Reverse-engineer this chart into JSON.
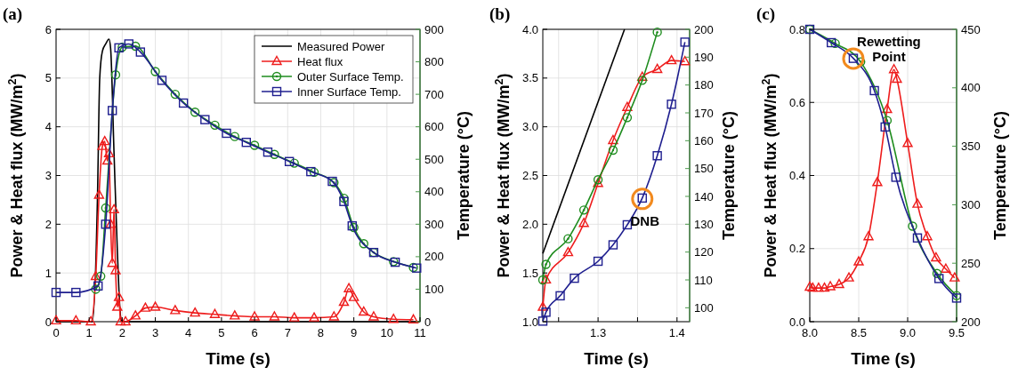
{
  "chart_data": [
    {
      "type": "line",
      "title": "(a)",
      "xlabel": "Time (s)",
      "ylabel": "Power & Heat flux (MW/m$^{2}$)",
      "y2label": "Temperature (°C)",
      "xlim": [
        0,
        11
      ],
      "xticks": [
        0,
        1,
        2,
        3,
        4,
        5,
        6,
        7,
        8,
        9,
        10,
        11
      ],
      "ylim": [
        0,
        6
      ],
      "yticks": [
        0,
        1,
        2,
        3,
        4,
        5,
        6
      ],
      "y2lim": [
        0,
        900
      ],
      "y2ticks": [
        0,
        100,
        200,
        300,
        400,
        500,
        600,
        700,
        800,
        900
      ],
      "grid": true,
      "legend": "top right",
      "series": [
        {
          "name": "Measured Power",
          "color": "#000000",
          "marker": "none",
          "x": [
            0,
            1.1,
            1.25,
            1.32,
            1.4,
            1.5,
            1.6,
            1.65,
            1.75,
            1.85,
            1.95,
            2.0,
            11
          ],
          "values": [
            0,
            0,
            2.5,
            5.0,
            5.55,
            5.7,
            5.8,
            5.6,
            3.5,
            1.5,
            0.1,
            0,
            0
          ]
        },
        {
          "name": "Heat flux",
          "color": "#ee1c1c",
          "marker": "triangle",
          "x": [
            0,
            0.6,
            1.05,
            1.2,
            1.3,
            1.4,
            1.47,
            1.55,
            1.6,
            1.65,
            1.7,
            1.75,
            1.8,
            1.85,
            1.9,
            1.95,
            2.1,
            2.4,
            2.7,
            3.0,
            3.6,
            4.2,
            4.8,
            5.4,
            6.0,
            6.6,
            7.2,
            7.8,
            8.4,
            8.7,
            8.85,
            9.0,
            9.3,
            9.6,
            10.2,
            10.8
          ],
          "values": [
            0.02,
            0.02,
            0,
            0.93,
            2.6,
            3.6,
            3.7,
            3.3,
            3.45,
            2.0,
            1.2,
            2.3,
            1.05,
            0.3,
            0.5,
            0,
            0,
            0.12,
            0.28,
            0.3,
            0.23,
            0.18,
            0.15,
            0.12,
            0.1,
            0.1,
            0.08,
            0.08,
            0.1,
            0.4,
            0.68,
            0.5,
            0.2,
            0.1,
            0.05,
            0.04
          ]
        },
        {
          "name": "Outer Surface Temp.",
          "color": "#1e8c1e",
          "marker": "circle",
          "axis": "y2",
          "x": [
            1.2,
            1.35,
            1.5,
            1.8,
            2.0,
            2.4,
            3.0,
            3.6,
            4.2,
            4.8,
            5.4,
            6.0,
            6.6,
            7.2,
            7.8,
            8.4,
            8.7,
            9.0,
            9.3,
            9.6,
            10.2,
            10.8
          ],
          "values": [
            100,
            140,
            350,
            760,
            845,
            848,
            770,
            700,
            645,
            605,
            570,
            543,
            515,
            488,
            460,
            428,
            380,
            290,
            240,
            213,
            185,
            167
          ]
        },
        {
          "name": "Inner Surface Temp.",
          "color": "#1f1f8f",
          "marker": "square",
          "axis": "y2",
          "x": [
            0,
            0.6,
            1.27,
            1.5,
            1.7,
            1.9,
            2.2,
            2.55,
            3.2,
            3.85,
            4.5,
            5.15,
            5.75,
            6.4,
            7.05,
            7.7,
            8.35,
            8.7,
            8.95,
            9.6,
            10.25,
            10.9
          ],
          "values": [
            90,
            90,
            110,
            300,
            650,
            843,
            855,
            830,
            743,
            673,
            622,
            580,
            552,
            522,
            493,
            462,
            432,
            370,
            295,
            213,
            183,
            165
          ]
        }
      ]
    },
    {
      "type": "line",
      "title": "(b)",
      "xlabel": "Time (s)",
      "ylabel": "Power & Heat flux (MW/m$^{2}$)",
      "y2label": "Temperature (°C)",
      "xlim": [
        1.23,
        1.416
      ],
      "xticks": [
        {
          "value": 1.25,
          "label": null
        },
        1.3,
        {
          "value": 1.35,
          "label": null
        },
        1.4
      ],
      "ylim": [
        1,
        4
      ],
      "yticks": [
        {
          "value": 1,
          "label": "1.0"
        },
        1.5,
        {
          "value": 2,
          "label": "2.0"
        },
        2.5,
        {
          "value": 3,
          "label": "3.0"
        },
        3.5,
        {
          "value": 4,
          "label": "4.0"
        }
      ],
      "y2lim": [
        95,
        200
      ],
      "y2ticks": [
        100,
        110,
        120,
        130,
        140,
        150,
        160,
        170,
        180,
        190,
        200
      ],
      "grid": true,
      "annotations": [
        {
          "text": "DNB",
          "x": 1.356,
          "y": 2.26
        }
      ],
      "series": [
        {
          "color": "#000000",
          "marker": "none",
          "x": [
            1.23,
            1.3335
          ],
          "values": [
            1.7,
            4.0
          ]
        },
        {
          "color": "#ee1c1c",
          "marker": "triangle",
          "x": [
            1.23,
            1.234,
            1.262,
            1.282,
            1.3,
            1.319,
            1.337,
            1.356,
            1.375,
            1.393,
            1.41
          ],
          "values": [
            1.15,
            1.43,
            1.71,
            2.01,
            2.42,
            2.86,
            3.2,
            3.51,
            3.59,
            3.68,
            3.67
          ]
        },
        {
          "color": "#1e8c1e",
          "marker": "circle",
          "axis": "y2",
          "x": [
            1.23,
            1.234,
            1.262,
            1.282,
            1.3,
            1.319,
            1.337,
            1.356,
            1.375
          ],
          "values": [
            110,
            115.6,
            124.8,
            135.1,
            146,
            156.6,
            168.3,
            181.7,
            199
          ]
        },
        {
          "color": "#1f1f8f",
          "marker": "square",
          "axis": "y2",
          "x": [
            1.23,
            1.234,
            1.252,
            1.27,
            1.3,
            1.319,
            1.337,
            1.356,
            1.375,
            1.393,
            1.41
          ],
          "values": [
            95.2,
            98.4,
            104.3,
            110.6,
            116.7,
            122.6,
            129.8,
            139.4,
            154.6,
            173.1,
            195.4
          ]
        }
      ]
    },
    {
      "type": "line",
      "title": "(c)",
      "xlabel": "Time (s)",
      "ylabel": "Power & Heat flux (MW/m$^{2}$)",
      "y2label": "Temperature (°C)",
      "xlim": [
        8,
        9.5
      ],
      "xticks": [
        {
          "value": 8,
          "label": "8.0"
        },
        8.5,
        {
          "value": 9,
          "label": "9.0"
        },
        9.5
      ],
      "ylim": [
        0,
        0.8
      ],
      "yticks": [
        {
          "value": 0,
          "label": "0.0"
        },
        0.2,
        0.4,
        0.6,
        0.8
      ],
      "y2lim": [
        200,
        450
      ],
      "y2ticks": [
        200,
        250,
        300,
        350,
        400,
        450
      ],
      "grid": true,
      "annotations": [
        {
          "text": "Rewetting Point",
          "x": 8.445,
          "y": 0.72
        }
      ],
      "series": [
        {
          "color": "#ee1c1c",
          "marker": "triangle",
          "x": [
            8.0,
            8.03,
            8.09,
            8.15,
            8.21,
            8.3,
            8.4,
            8.5,
            8.6,
            8.69,
            8.79,
            8.86,
            8.89,
            9.0,
            9.1,
            9.2,
            9.29,
            9.39,
            9.48
          ],
          "values": [
            0.095,
            0.092,
            0.092,
            0.092,
            0.096,
            0.102,
            0.12,
            0.164,
            0.233,
            0.381,
            0.581,
            0.69,
            0.664,
            0.488,
            0.322,
            0.233,
            0.175,
            0.144,
            0.12
          ]
        },
        {
          "color": "#1e8c1e",
          "marker": "circle",
          "axis": "y2",
          "x": [
            8.0,
            8.26,
            8.52,
            8.79,
            9.05,
            9.3,
            9.5
          ],
          "values": [
            450,
            437.9,
            422.2,
            372,
            281.7,
            241.2,
            222.3
          ]
        },
        {
          "color": "#1f1f8f",
          "marker": "square",
          "axis": "y2",
          "x": [
            8.0,
            8.22,
            8.445,
            8.66,
            8.77,
            8.88,
            9.1,
            9.32,
            9.5
          ],
          "values": [
            450,
            438.6,
            425.2,
            397.6,
            366.5,
            323.5,
            271.6,
            236.9,
            220.2
          ]
        }
      ]
    }
  ]
}
